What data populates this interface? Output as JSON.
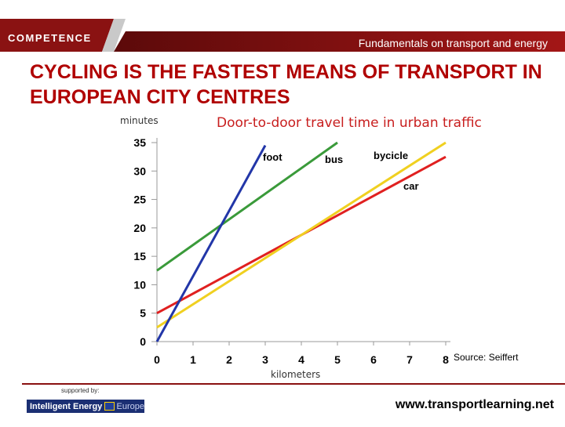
{
  "header": {
    "logo_text": "COMPETENCE",
    "title": "Fundamentals on transport and energy"
  },
  "slide": {
    "title": "CYCLING IS THE FASTEST MEANS OF TRANSPORT IN EUROPEAN CITY CENTRES"
  },
  "chart_data": {
    "type": "line",
    "title": "Door-to-door travel time in urban traffic",
    "xlabel": "kilometers",
    "ylabel": "minutes",
    "xlim": [
      0,
      8
    ],
    "ylim": [
      0,
      35
    ],
    "x_ticks": [
      "0",
      "1",
      "2",
      "3",
      "4",
      "5",
      "6",
      "7",
      "8"
    ],
    "y_ticks": [
      "0",
      "5",
      "10",
      "15",
      "20",
      "25",
      "30",
      "35"
    ],
    "grid": false,
    "series": [
      {
        "name": "foot",
        "color": "#2236a8",
        "x": [
          0,
          3
        ],
        "y": [
          0,
          34.5
        ]
      },
      {
        "name": "bus",
        "color": "#3a9a3a",
        "x": [
          0,
          5
        ],
        "y": [
          12.5,
          35
        ]
      },
      {
        "name": "bycicle",
        "color": "#f0d020",
        "x": [
          0,
          8
        ],
        "y": [
          2.5,
          35
        ]
      },
      {
        "name": "car",
        "color": "#e02020",
        "x": [
          0,
          8
        ],
        "y": [
          5,
          32.5
        ]
      }
    ],
    "annotations": [
      "Source: Seiffert"
    ]
  },
  "footer": {
    "supported_by": "supported by:",
    "iee_text": "Intelligent Energy",
    "iee_europe": "Europe",
    "website": "www.transportlearning.net"
  },
  "colors": {
    "brand_red": "#b00000",
    "header_dark": "#7a0c0c"
  }
}
